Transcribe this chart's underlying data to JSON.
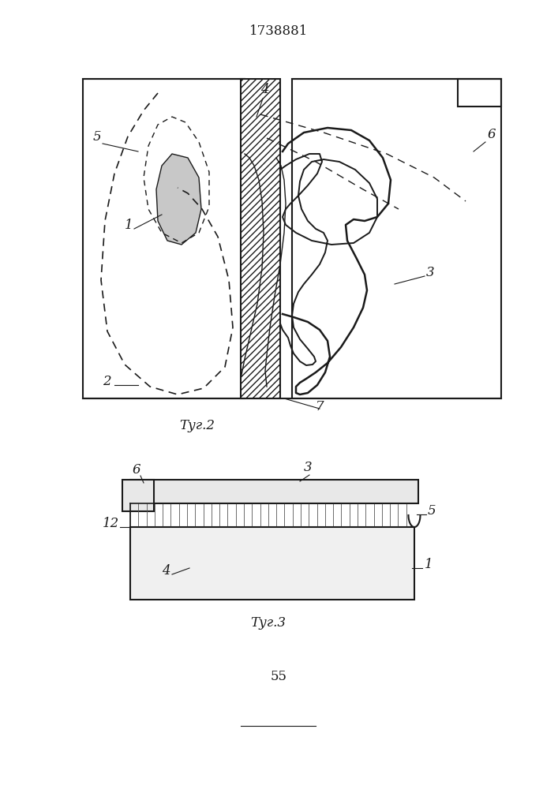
{
  "title": "1738881",
  "fig2_label": "Τуг.2",
  "fig3_label": "Τуг.3",
  "page_num": "55",
  "bg_color": "#ffffff",
  "line_color": "#1a1a1a",
  "hatch_color": "#333333"
}
